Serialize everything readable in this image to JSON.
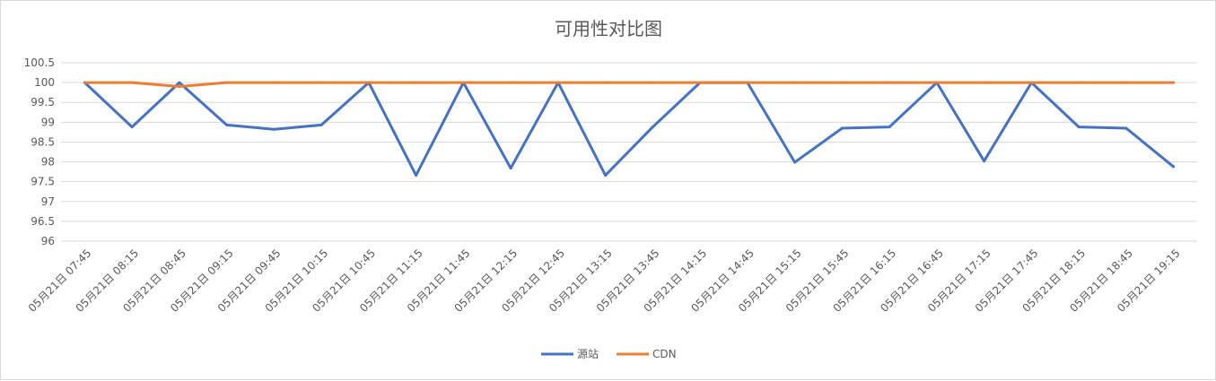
{
  "chart_data": {
    "type": "line",
    "title": "可用性对比图",
    "xlabel": "",
    "ylabel": "",
    "ylim": [
      96,
      100.5
    ],
    "y_ticks": [
      "96",
      "96.5",
      "97",
      "97.5",
      "98",
      "98.5",
      "99",
      "99.5",
      "100",
      "100.5"
    ],
    "grid": true,
    "legend_position": "bottom",
    "categories": [
      "05月21日 07:45",
      "05月21日 08:15",
      "05月21日 08:45",
      "05月21日 09:15",
      "05月21日 09:45",
      "05月21日 10:15",
      "05月21日 10:45",
      "05月21日 11:15",
      "05月21日 11:45",
      "05月21日 12:15",
      "05月21日 12:45",
      "05月21日 13:15",
      "05月21日 13:45",
      "05月21日 14:15",
      "05月21日 14:45",
      "05月21日 15:15",
      "05月21日 15:45",
      "05月21日 16:15",
      "05月21日 16:45",
      "05月21日 17:15",
      "05月21日 17:45",
      "05月21日 18:15",
      "05月21日 18:45",
      "05月21日 19:15"
    ],
    "series": [
      {
        "name": "源站",
        "color": "#4472C4",
        "values": [
          100,
          98.88,
          100,
          98.93,
          98.82,
          98.93,
          100,
          97.66,
          100,
          97.84,
          100,
          97.66,
          98.88,
          100,
          100,
          97.99,
          98.85,
          98.88,
          100,
          98.02,
          100,
          98.88,
          98.85,
          97.88
        ]
      },
      {
        "name": "CDN",
        "color": "#ED7D31",
        "values": [
          100,
          100,
          99.9,
          100,
          100,
          100,
          100,
          100,
          100,
          100,
          100,
          100,
          100,
          100,
          100,
          100,
          100,
          100,
          100,
          100,
          100,
          100,
          100,
          100
        ]
      }
    ]
  }
}
